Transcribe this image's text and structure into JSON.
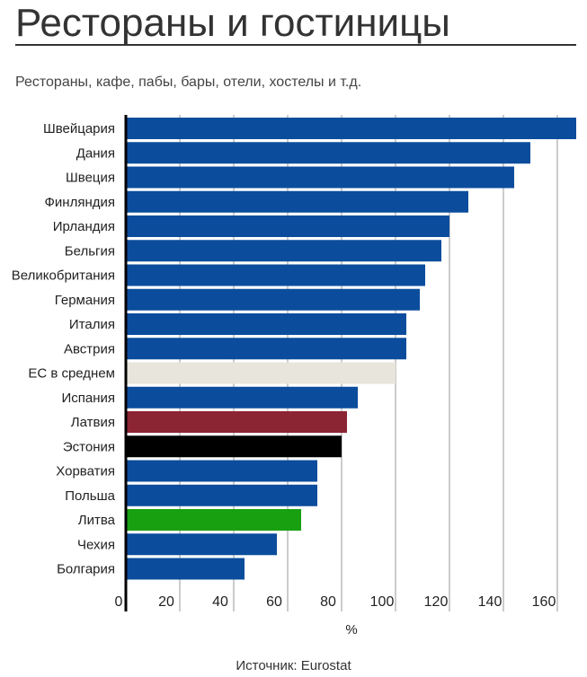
{
  "title": "Рестораны и гостиницы",
  "subtitle": "Рестораны, кафе, пабы, бары, отели, хостелы и т.д.",
  "source": "Источник: Eurostat",
  "chart_data": {
    "type": "bar",
    "orientation": "horizontal",
    "title": "Рестораны и гостиницы",
    "subtitle": "Рестораны, кафе, пабы, бары, отели, хостелы и т.д.",
    "xlabel": "%",
    "ylabel": "",
    "xlim": [
      0,
      167
    ],
    "xticks": [
      0,
      20,
      40,
      60,
      80,
      100,
      120,
      140,
      160
    ],
    "grid": true,
    "categories": [
      "Швейцария",
      "Дания",
      "Швеция",
      "Финляндия",
      "Ирландия",
      "Бельгия",
      "Великобритания",
      "Германия",
      "Италия",
      "Австрия",
      "ЕС в среднем",
      "Испания",
      "Латвия",
      "Эстония",
      "Хорватия",
      "Польша",
      "Литва",
      "Чехия",
      "Болгария"
    ],
    "values": [
      167,
      150,
      144,
      127,
      120,
      117,
      111,
      109,
      104,
      104,
      100,
      86,
      82,
      80,
      71,
      71,
      65,
      56,
      44
    ],
    "colors": [
      "#0b4d9c",
      "#0b4d9c",
      "#0b4d9c",
      "#0b4d9c",
      "#0b4d9c",
      "#0b4d9c",
      "#0b4d9c",
      "#0b4d9c",
      "#0b4d9c",
      "#0b4d9c",
      "#e8e5dc",
      "#0b4d9c",
      "#8b2433",
      "#000000",
      "#0b4d9c",
      "#0b4d9c",
      "#19a010",
      "#0b4d9c",
      "#0b4d9c"
    ]
  }
}
